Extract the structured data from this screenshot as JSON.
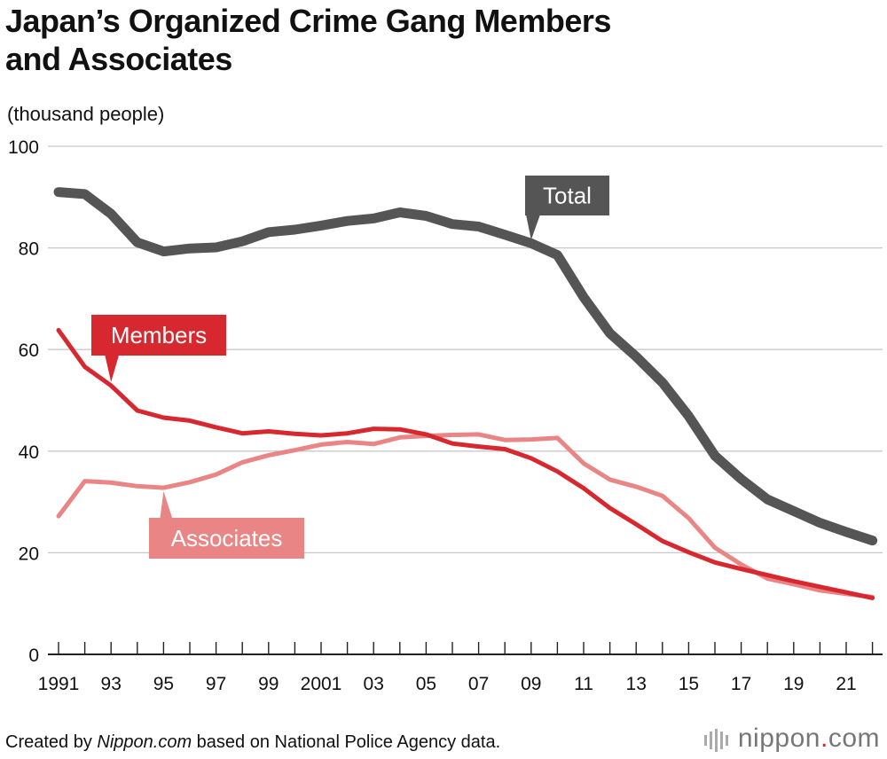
{
  "title_line1": "Japan’s Organized Crime Gang Members",
  "title_line2": "and Associates",
  "unit_label": "(thousand people)",
  "footer": {
    "prefix": "Created by ",
    "source_italic": "Nippon.com",
    "suffix": " based on National Police Agency data."
  },
  "brand": {
    "name": "nippon",
    "dot": ".",
    "tld": "com"
  },
  "chart_data": {
    "type": "line",
    "title": "Japan’s Organized Crime Gang Members and Associates",
    "ylabel": "(thousand people)",
    "xlabel": "",
    "ylim": [
      0,
      100
    ],
    "yticks": [
      0,
      20,
      40,
      60,
      80,
      100
    ],
    "x": [
      1991,
      1992,
      1993,
      1994,
      1995,
      1996,
      1997,
      1998,
      1999,
      2000,
      2001,
      2002,
      2003,
      2004,
      2005,
      2006,
      2007,
      2008,
      2009,
      2010,
      2011,
      2012,
      2013,
      2014,
      2015,
      2016,
      2017,
      2018,
      2019,
      2020,
      2021,
      2022
    ],
    "x_tick_labels": [
      "1991",
      "93",
      "95",
      "97",
      "99",
      "2001",
      "03",
      "05",
      "07",
      "09",
      "11",
      "13",
      "15",
      "17",
      "19",
      "21"
    ],
    "x_tick_years": [
      1991,
      1993,
      1995,
      1997,
      1999,
      2001,
      2003,
      2005,
      2007,
      2009,
      2011,
      2013,
      2015,
      2017,
      2019,
      2021
    ],
    "grid": true,
    "series": [
      {
        "name": "Total",
        "color": "#555555",
        "values": [
          91.0,
          90.6,
          86.7,
          81.1,
          79.3,
          79.9,
          80.1,
          81.3,
          83.1,
          83.6,
          84.4,
          85.3,
          85.8,
          87.0,
          86.3,
          84.7,
          84.2,
          82.6,
          80.9,
          78.6,
          70.3,
          63.2,
          58.6,
          53.5,
          46.9,
          39.1,
          34.5,
          30.5,
          28.2,
          25.9,
          24.1,
          22.4
        ]
      },
      {
        "name": "Members",
        "color": "#d7282f",
        "values": [
          63.8,
          56.6,
          52.9,
          48.0,
          46.6,
          46.0,
          44.7,
          43.5,
          43.9,
          43.4,
          43.1,
          43.5,
          44.4,
          44.3,
          43.3,
          41.5,
          40.9,
          40.4,
          38.6,
          36.0,
          32.7,
          28.8,
          25.6,
          22.3,
          20.1,
          18.1,
          16.8,
          15.6,
          14.4,
          13.3,
          12.2,
          11.1
        ]
      },
      {
        "name": "Associates",
        "color": "#e98585",
        "values": [
          27.2,
          34.1,
          33.8,
          33.1,
          32.8,
          33.9,
          35.4,
          37.8,
          39.2,
          40.2,
          41.3,
          41.8,
          41.4,
          42.7,
          43.0,
          43.2,
          43.3,
          42.2,
          42.3,
          42.6,
          37.6,
          34.4,
          33.0,
          31.2,
          26.8,
          21.0,
          17.7,
          14.9,
          13.8,
          12.6,
          11.9,
          11.3
        ]
      }
    ]
  }
}
